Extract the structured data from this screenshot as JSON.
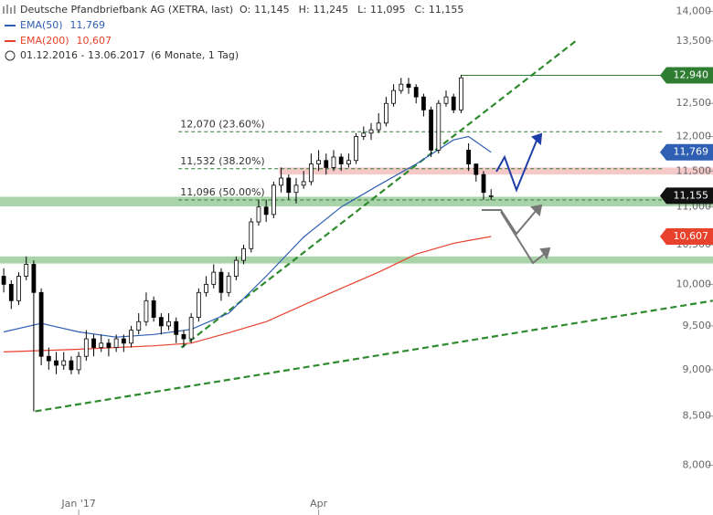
{
  "chart_data": {
    "type": "candlestick",
    "header": {
      "title": "Deutsche Pfandbriefbank AG (XETRA, last)",
      "ohlc": [
        {
          "name": "O:",
          "value": 11145,
          "label": "11,145"
        },
        {
          "name": "H:",
          "value": 11245,
          "label": "11,245"
        },
        {
          "name": "L:",
          "value": 11095,
          "label": "11,095"
        },
        {
          "name": "C:",
          "value": 11155,
          "label": "11,155"
        }
      ],
      "period": "01.12.2016 - 13.06.2017",
      "interval": "(6 Monate, 1 Tag)"
    },
    "log_scale": true,
    "ylim": [
      7730,
      14200
    ],
    "yticks": [
      {
        "value": 8000,
        "label": "8,000"
      },
      {
        "value": 8500,
        "label": "8,500"
      },
      {
        "value": 9000,
        "label": "9,000"
      },
      {
        "value": 9500,
        "label": "9,500"
      },
      {
        "value": 10000,
        "label": "10,000"
      },
      {
        "value": 10500,
        "label": "10,500"
      },
      {
        "value": 11000,
        "label": "11,000"
      },
      {
        "value": 11500,
        "label": "11,500"
      },
      {
        "value": 12000,
        "label": "12,000"
      },
      {
        "value": 12500,
        "label": "12,500"
      },
      {
        "value": 13000,
        "label": "13,000"
      },
      {
        "value": 13500,
        "label": "13,500"
      },
      {
        "value": 14000,
        "label": "14,000"
      }
    ],
    "xlim": [
      -0.5,
      94.6
    ],
    "xticks": [
      {
        "value": 10,
        "label": "Jan '17"
      },
      {
        "value": 42,
        "label": "Apr"
      }
    ],
    "candles": {
      "up_color": "#ffffff",
      "down_color": "#000000",
      "open": [
        10100,
        10000,
        9800,
        10100,
        10250,
        9900,
        9150,
        9100,
        9050,
        9100,
        9000,
        9150,
        9350,
        9250,
        9300,
        9250,
        9350,
        9300,
        9450,
        9550,
        9800,
        9600,
        9500,
        9550,
        9400,
        9350,
        9600,
        9900,
        10000,
        10150,
        9900,
        10100,
        10300,
        10450,
        10800,
        11000,
        10900,
        11300,
        11400,
        11200,
        11300,
        11350,
        11600,
        11650,
        11550,
        11700,
        11600,
        11650,
        12000,
        12050,
        12100,
        12200,
        12500,
        12700,
        12800,
        12750,
        12600,
        12400,
        11800,
        12500,
        12600,
        12400,
        11800,
        11600,
        11450,
        11145
      ],
      "high": [
        10200,
        10050,
        10150,
        10350,
        10300,
        9950,
        9250,
        9200,
        9200,
        9150,
        9200,
        9450,
        9400,
        9400,
        9350,
        9400,
        9400,
        9500,
        9650,
        9900,
        9850,
        9650,
        9650,
        9600,
        9450,
        9650,
        9950,
        10100,
        10250,
        10200,
        10150,
        10350,
        10500,
        10850,
        11100,
        11100,
        11350,
        11550,
        11450,
        11400,
        11500,
        11750,
        11800,
        11750,
        11800,
        11750,
        11750,
        12050,
        12150,
        12200,
        12350,
        12600,
        12800,
        12900,
        12900,
        12800,
        12650,
        12450,
        12550,
        12700,
        12650,
        12950,
        11900,
        11600,
        11500,
        11245
      ],
      "low": [
        9900,
        9700,
        9750,
        10050,
        8550,
        9050,
        9000,
        8950,
        9000,
        8950,
        8950,
        9100,
        9150,
        9200,
        9150,
        9200,
        9200,
        9250,
        9400,
        9500,
        9550,
        9400,
        9450,
        9300,
        9250,
        9300,
        9550,
        9850,
        9950,
        9800,
        9850,
        10050,
        10250,
        10400,
        10750,
        10800,
        10850,
        11200,
        11100,
        11050,
        11250,
        11300,
        11500,
        11450,
        11500,
        11500,
        11550,
        11600,
        11950,
        11950,
        12050,
        12150,
        12450,
        12650,
        12650,
        12500,
        12300,
        11700,
        11750,
        12450,
        12350,
        12350,
        11500,
        11350,
        11100,
        11095
      ],
      "close": [
        10000,
        9800,
        10100,
        10250,
        9900,
        9150,
        9100,
        9050,
        9100,
        9000,
        9150,
        9350,
        9250,
        9300,
        9250,
        9350,
        9300,
        9450,
        9550,
        9800,
        9600,
        9500,
        9550,
        9400,
        9350,
        9600,
        9900,
        10000,
        10150,
        9900,
        10100,
        10300,
        10450,
        10800,
        11000,
        10900,
        11300,
        11400,
        11200,
        11300,
        11350,
        11600,
        11650,
        11550,
        11700,
        11600,
        11650,
        12000,
        12050,
        12100,
        12200,
        12500,
        12700,
        12800,
        12750,
        12600,
        12400,
        11800,
        12500,
        12600,
        12400,
        12900,
        11600,
        11450,
        11200,
        11155
      ]
    },
    "series": [
      {
        "name": "EMA(50)",
        "color": "#2f5fb3",
        "value": 11769,
        "label": "11,769",
        "x": [
          0,
          5,
          10,
          15,
          20,
          25,
          30,
          35,
          40,
          45,
          50,
          55,
          60,
          62,
          65
        ],
        "values": [
          9430,
          9530,
          9430,
          9370,
          9400,
          9460,
          9650,
          10100,
          10600,
          11000,
          11300,
          11600,
          11950,
          12000,
          11769
        ]
      },
      {
        "name": "EMA(200)",
        "color": "#e8412c",
        "value": 10607,
        "label": "10,607",
        "x": [
          0,
          10,
          20,
          25,
          30,
          35,
          40,
          45,
          50,
          55,
          60,
          65
        ],
        "values": [
          9200,
          9230,
          9270,
          9300,
          9420,
          9550,
          9750,
          9950,
          10150,
          10380,
          10520,
          10607
        ]
      }
    ],
    "last": {
      "value": 11155,
      "label": "11,155",
      "color": "#111111"
    },
    "levels": [
      {
        "value": 12940,
        "label": "12,940",
        "color": "#2e7d32",
        "from": 61
      }
    ],
    "fib_lines": [
      {
        "value": 12070,
        "label": "12,070 (23.60%)",
        "from": 23.3
      },
      {
        "value": 11532,
        "label": "11,532 (38.20%)",
        "from": 23.3
      },
      {
        "value": 11096,
        "label": "11,096 (50.00%)",
        "from": 23.3
      }
    ],
    "fib_color": "#2e7d32",
    "zones": [
      {
        "range": [
          11450,
          11550
        ],
        "from": 36.7,
        "color": "#f6c9c9"
      },
      {
        "range": [
          11010,
          11140
        ],
        "from": -0.5,
        "color": "#a9d3a9"
      },
      {
        "range": [
          10260,
          10350
        ],
        "from": -0.5,
        "color": "#a9d3a9"
      }
    ],
    "trendlines": [
      {
        "color": "#2e8b2e",
        "points": [
          [
            4.2,
            8550
          ],
          [
            94.6,
            9800
          ]
        ]
      },
      {
        "color": "#2e8b2e",
        "points": [
          [
            23.7,
            9250
          ],
          [
            76.3,
            13500
          ]
        ]
      }
    ]
  }
}
